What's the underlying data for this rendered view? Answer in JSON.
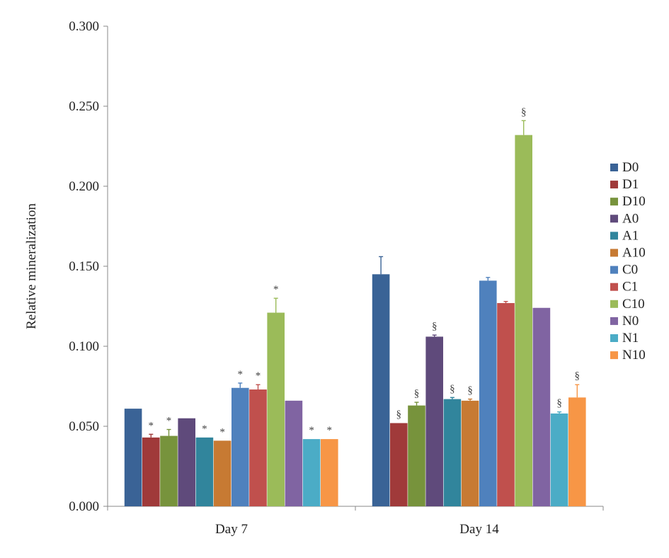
{
  "chart_data": {
    "type": "bar",
    "title": "",
    "xlabel": "",
    "ylabel": "Relative mineralization",
    "ylim": [
      0,
      0.3
    ],
    "yticks": [
      "0.000",
      "0.050",
      "0.100",
      "0.150",
      "0.200",
      "0.250",
      "0.300"
    ],
    "grid": false,
    "legend_position": "right",
    "categories": [
      "Day 7",
      "Day 14"
    ],
    "series": [
      {
        "name": "D0",
        "color": "#3a6396",
        "values": [
          0.061,
          0.145
        ],
        "errors": [
          0.0,
          0.011
        ],
        "markers": [
          "",
          ""
        ]
      },
      {
        "name": "D1",
        "color": "#a03a3a",
        "values": [
          0.043,
          0.052
        ],
        "errors": [
          0.002,
          0.0
        ],
        "markers": [
          "*",
          "§"
        ]
      },
      {
        "name": "D10",
        "color": "#77933c",
        "values": [
          0.044,
          0.063
        ],
        "errors": [
          0.004,
          0.002
        ],
        "markers": [
          "*",
          "§"
        ]
      },
      {
        "name": "A0",
        "color": "#5f4a7b",
        "values": [
          0.055,
          0.106
        ],
        "errors": [
          0.0,
          0.001
        ],
        "markers": [
          "",
          "§"
        ]
      },
      {
        "name": "A1",
        "color": "#31859c",
        "values": [
          0.043,
          0.067
        ],
        "errors": [
          0.0,
          0.001
        ],
        "markers": [
          "*",
          "§"
        ]
      },
      {
        "name": "A10",
        "color": "#c77a33",
        "values": [
          0.041,
          0.066
        ],
        "errors": [
          0.0,
          0.001
        ],
        "markers": [
          "*",
          "§"
        ]
      },
      {
        "name": "C0",
        "color": "#4f81bd",
        "values": [
          0.074,
          0.141
        ],
        "errors": [
          0.003,
          0.002
        ],
        "markers": [
          "*",
          ""
        ]
      },
      {
        "name": "C1",
        "color": "#c0504d",
        "values": [
          0.073,
          0.127
        ],
        "errors": [
          0.003,
          0.001
        ],
        "markers": [
          "*",
          ""
        ]
      },
      {
        "name": "C10",
        "color": "#9bbb59",
        "values": [
          0.121,
          0.232
        ],
        "errors": [
          0.009,
          0.009
        ],
        "markers": [
          "*",
          "§"
        ]
      },
      {
        "name": "N0",
        "color": "#8064a2",
        "values": [
          0.066,
          0.124
        ],
        "errors": [
          0.0,
          0.0
        ],
        "markers": [
          "",
          ""
        ]
      },
      {
        "name": "N1",
        "color": "#4bacc6",
        "values": [
          0.042,
          0.058
        ],
        "errors": [
          0.0,
          0.001
        ],
        "markers": [
          "*",
          "§"
        ]
      },
      {
        "name": "N10",
        "color": "#f79646",
        "values": [
          0.042,
          0.068
        ],
        "errors": [
          0.0,
          0.008
        ],
        "markers": [
          "*",
          "§"
        ]
      }
    ]
  }
}
